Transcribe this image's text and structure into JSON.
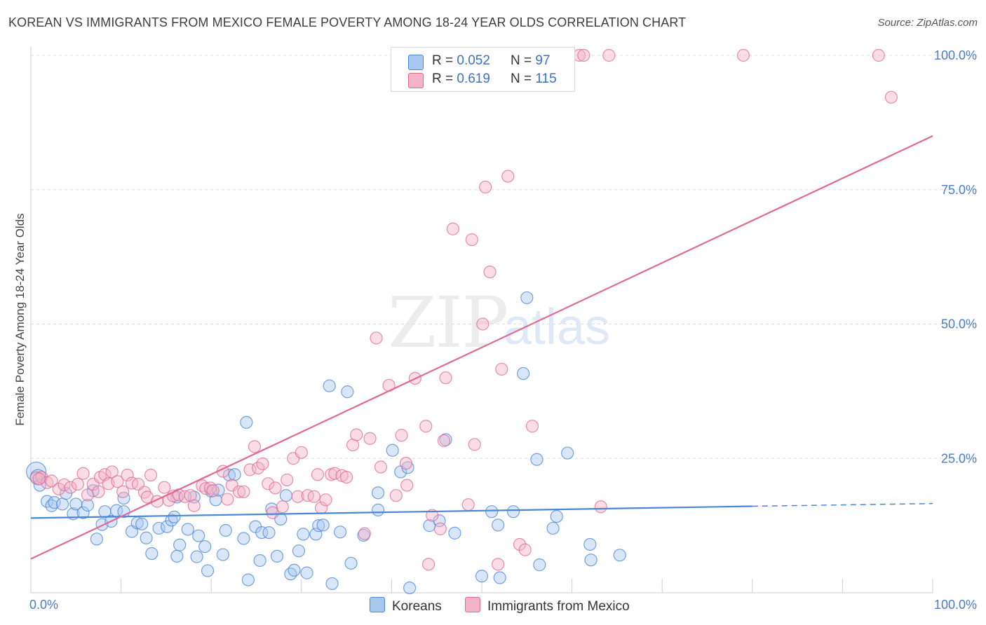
{
  "title": "KOREAN VS IMMIGRANTS FROM MEXICO FEMALE POVERTY AMONG 18-24 YEAR OLDS CORRELATION CHART",
  "source": "Source: ZipAtlas.com",
  "watermark": {
    "zip": "ZIP",
    "atlas": "atlas"
  },
  "colors": {
    "blue": "#4a86d8",
    "blue_fill": "#a9c8f0",
    "pink": "#e06a94",
    "pink_fill": "#f5b3c8",
    "axis_text": "#4a7cc7"
  },
  "legend": {
    "rows": [
      {
        "r_label": "R = ",
        "r_value": "0.052",
        "n_label": "N = ",
        "n_value": "97",
        "color": "#a9c8f0"
      },
      {
        "r_label": "R = ",
        "r_value": "0.619",
        "n_label": "N = ",
        "n_value": "115",
        "color": "#f5b3c8"
      }
    ]
  },
  "bottom_legend": [
    "Koreans",
    "Immigrants from Mexico"
  ],
  "chart_data": {
    "type": "scatter",
    "title": "KOREAN VS IMMIGRANTS FROM MEXICO FEMALE POVERTY AMONG 18-24 YEAR OLDS CORRELATION CHART",
    "xlabel": "",
    "ylabel": "Female Poverty Among 18-24 Year Olds",
    "xlim": [
      0,
      100
    ],
    "ylim": [
      0,
      100
    ],
    "x_tick_labels": [
      "0.0%",
      "100.0%"
    ],
    "y_tick_labels": [
      "25.0%",
      "50.0%",
      "75.0%",
      "100.0%"
    ],
    "y_ticks": [
      25,
      50,
      75,
      100
    ],
    "grid": true,
    "legend_position": "top-center",
    "series": [
      {
        "name": "Koreans",
        "color": "#4a86d8",
        "trend": {
          "x": [
            0,
            80
          ],
          "y": [
            13.9,
            16.1
          ],
          "dashed_to": [
            100,
            16.6
          ]
        },
        "points": [
          [
            0.6,
            22.5
          ],
          [
            0.8,
            21.5
          ],
          [
            1.0,
            20.0
          ],
          [
            1.8,
            17.0
          ],
          [
            2.3,
            16.2
          ],
          [
            2.6,
            16.8
          ],
          [
            3.5,
            16.5
          ],
          [
            3.9,
            18.5
          ],
          [
            4.7,
            14.7
          ],
          [
            5.0,
            16.5
          ],
          [
            5.8,
            14.9
          ],
          [
            6.3,
            16.3
          ],
          [
            6.9,
            19.0
          ],
          [
            7.3,
            10.0
          ],
          [
            7.9,
            12.7
          ],
          [
            8.2,
            15.1
          ],
          [
            8.9,
            13.3
          ],
          [
            9.5,
            15.3
          ],
          [
            10.3,
            15.1
          ],
          [
            10.3,
            17.6
          ],
          [
            11.2,
            11.4
          ],
          [
            11.8,
            13.0
          ],
          [
            12.3,
            12.8
          ],
          [
            12.8,
            10.2
          ],
          [
            13.4,
            7.3
          ],
          [
            14.2,
            12.0
          ],
          [
            15.1,
            12.3
          ],
          [
            15.6,
            13.5
          ],
          [
            15.9,
            14.1
          ],
          [
            16.2,
            17.8
          ],
          [
            16.2,
            6.8
          ],
          [
            16.5,
            8.9
          ],
          [
            17.4,
            11.8
          ],
          [
            18.1,
            17.8
          ],
          [
            18.4,
            6.7
          ],
          [
            18.6,
            10.6
          ],
          [
            19.3,
            8.6
          ],
          [
            19.6,
            4.1
          ],
          [
            20.0,
            18.9
          ],
          [
            20.5,
            17.3
          ],
          [
            20.8,
            19.1
          ],
          [
            21.3,
            7.1
          ],
          [
            21.6,
            11.6
          ],
          [
            22.0,
            21.9
          ],
          [
            22.6,
            22.0
          ],
          [
            23.6,
            10.1
          ],
          [
            23.9,
            31.7
          ],
          [
            24.1,
            2.4
          ],
          [
            24.9,
            12.3
          ],
          [
            25.4,
            6.0
          ],
          [
            25.6,
            11.2
          ],
          [
            26.4,
            11.2
          ],
          [
            26.7,
            15.6
          ],
          [
            27.3,
            6.8
          ],
          [
            27.7,
            13.7
          ],
          [
            28.3,
            18.1
          ],
          [
            28.8,
            3.5
          ],
          [
            29.2,
            4.2
          ],
          [
            29.7,
            7.8
          ],
          [
            30.2,
            10.9
          ],
          [
            30.6,
            3.7
          ],
          [
            31.6,
            10.9
          ],
          [
            31.9,
            12.5
          ],
          [
            32.4,
            12.6
          ],
          [
            33.1,
            38.5
          ],
          [
            33.4,
            1.7
          ],
          [
            34.3,
            11.3
          ],
          [
            35.1,
            37.4
          ],
          [
            35.5,
            5.5
          ],
          [
            36.9,
            10.7
          ],
          [
            38.5,
            18.6
          ],
          [
            38.5,
            15.4
          ],
          [
            40.1,
            26.5
          ],
          [
            41.0,
            22.5
          ],
          [
            41.8,
            23.3
          ],
          [
            42.0,
            0.9
          ],
          [
            44.2,
            12.5
          ],
          [
            45.3,
            13.4
          ],
          [
            46.0,
            28.5
          ],
          [
            47.0,
            11.1
          ],
          [
            50.0,
            3.1
          ],
          [
            51.1,
            15.1
          ],
          [
            51.8,
            12.6
          ],
          [
            52.0,
            2.8
          ],
          [
            53.5,
            15.1
          ],
          [
            54.6,
            40.8
          ],
          [
            55.0,
            54.9
          ],
          [
            56.1,
            24.8
          ],
          [
            56.4,
            5.2
          ],
          [
            57.9,
            12.0
          ],
          [
            58.3,
            14.2
          ],
          [
            59.5,
            26.0
          ],
          [
            62.0,
            9.0
          ],
          [
            62.1,
            6.1
          ],
          [
            65.3,
            7.0
          ]
        ]
      },
      {
        "name": "Immigrants from Mexico",
        "color": "#e06a94",
        "trend": {
          "x": [
            0,
            100
          ],
          "y": [
            6.3,
            85.0
          ]
        },
        "points": [
          [
            0.6,
            21.4
          ],
          [
            1.2,
            21.5
          ],
          [
            1.8,
            20.5
          ],
          [
            2.3,
            20.8
          ],
          [
            3.1,
            19.3
          ],
          [
            3.7,
            20.1
          ],
          [
            4.4,
            19.6
          ],
          [
            5.2,
            20.2
          ],
          [
            5.8,
            22.2
          ],
          [
            6.3,
            18.2
          ],
          [
            6.9,
            20.2
          ],
          [
            7.5,
            18.8
          ],
          [
            7.7,
            21.5
          ],
          [
            8.2,
            22.0
          ],
          [
            8.6,
            20.3
          ],
          [
            9.0,
            22.5
          ],
          [
            9.6,
            20.7
          ],
          [
            10.2,
            18.8
          ],
          [
            10.7,
            21.9
          ],
          [
            11.2,
            20.4
          ],
          [
            11.9,
            20.2
          ],
          [
            12.6,
            18.7
          ],
          [
            12.9,
            17.8
          ],
          [
            13.3,
            21.9
          ],
          [
            14.0,
            17.0
          ],
          [
            14.8,
            19.6
          ],
          [
            15.3,
            17.2
          ],
          [
            15.8,
            18.0
          ],
          [
            16.4,
            18.2
          ],
          [
            17.1,
            17.9
          ],
          [
            17.7,
            18.1
          ],
          [
            18.1,
            16.2
          ],
          [
            19.0,
            19.9
          ],
          [
            19.4,
            19.4
          ],
          [
            19.9,
            19.5
          ],
          [
            20.2,
            19.0
          ],
          [
            21.3,
            22.6
          ],
          [
            21.8,
            17.4
          ],
          [
            22.3,
            20.0
          ],
          [
            23.1,
            18.8
          ],
          [
            23.6,
            18.8
          ],
          [
            24.3,
            22.9
          ],
          [
            24.8,
            27.2
          ],
          [
            25.2,
            23.2
          ],
          [
            25.7,
            24.0
          ],
          [
            26.3,
            20.3
          ],
          [
            26.8,
            14.9
          ],
          [
            27.1,
            19.5
          ],
          [
            27.9,
            16.0
          ],
          [
            28.4,
            21.0
          ],
          [
            29.1,
            25.0
          ],
          [
            29.6,
            17.9
          ],
          [
            30.0,
            26.1
          ],
          [
            30.7,
            18.1
          ],
          [
            31.4,
            17.9
          ],
          [
            31.8,
            22.0
          ],
          [
            32.2,
            15.8
          ],
          [
            32.7,
            17.3
          ],
          [
            33.3,
            22.0
          ],
          [
            33.7,
            22.2
          ],
          [
            34.5,
            21.8
          ],
          [
            35.0,
            21.5
          ],
          [
            35.7,
            27.5
          ],
          [
            36.1,
            29.4
          ],
          [
            37.0,
            11.0
          ],
          [
            37.6,
            28.7
          ],
          [
            38.3,
            47.4
          ],
          [
            38.8,
            23.4
          ],
          [
            39.7,
            38.6
          ],
          [
            40.5,
            18.1
          ],
          [
            41.1,
            29.3
          ],
          [
            41.6,
            24.1
          ],
          [
            41.7,
            20.0
          ],
          [
            42.6,
            39.9
          ],
          [
            43.8,
            31.0
          ],
          [
            44.1,
            5.3
          ],
          [
            45.4,
            11.9
          ],
          [
            45.8,
            28.3
          ],
          [
            46.0,
            40.0
          ],
          [
            46.8,
            67.7
          ],
          [
            48.5,
            16.4
          ],
          [
            48.9,
            65.7
          ],
          [
            49.2,
            27.6
          ],
          [
            50.1,
            50.0
          ],
          [
            50.4,
            75.5
          ],
          [
            50.9,
            59.7
          ],
          [
            51.8,
            5.3
          ],
          [
            52.2,
            41.6
          ],
          [
            52.9,
            77.5
          ],
          [
            54.2,
            9.0
          ],
          [
            54.8,
            8.0
          ],
          [
            55.2,
            100
          ],
          [
            55.6,
            31.0
          ],
          [
            60.8,
            100
          ],
          [
            61.3,
            100
          ],
          [
            64.1,
            100
          ],
          [
            79.0,
            100
          ],
          [
            95.4,
            92.2
          ],
          [
            94.0,
            100
          ],
          [
            63.2,
            16.0
          ],
          [
            52.0,
            100
          ],
          [
            53.0,
            100
          ],
          [
            0.9,
            21.2
          ],
          [
            44.5,
            14.4
          ],
          [
            59.5,
            100
          ]
        ]
      }
    ]
  }
}
